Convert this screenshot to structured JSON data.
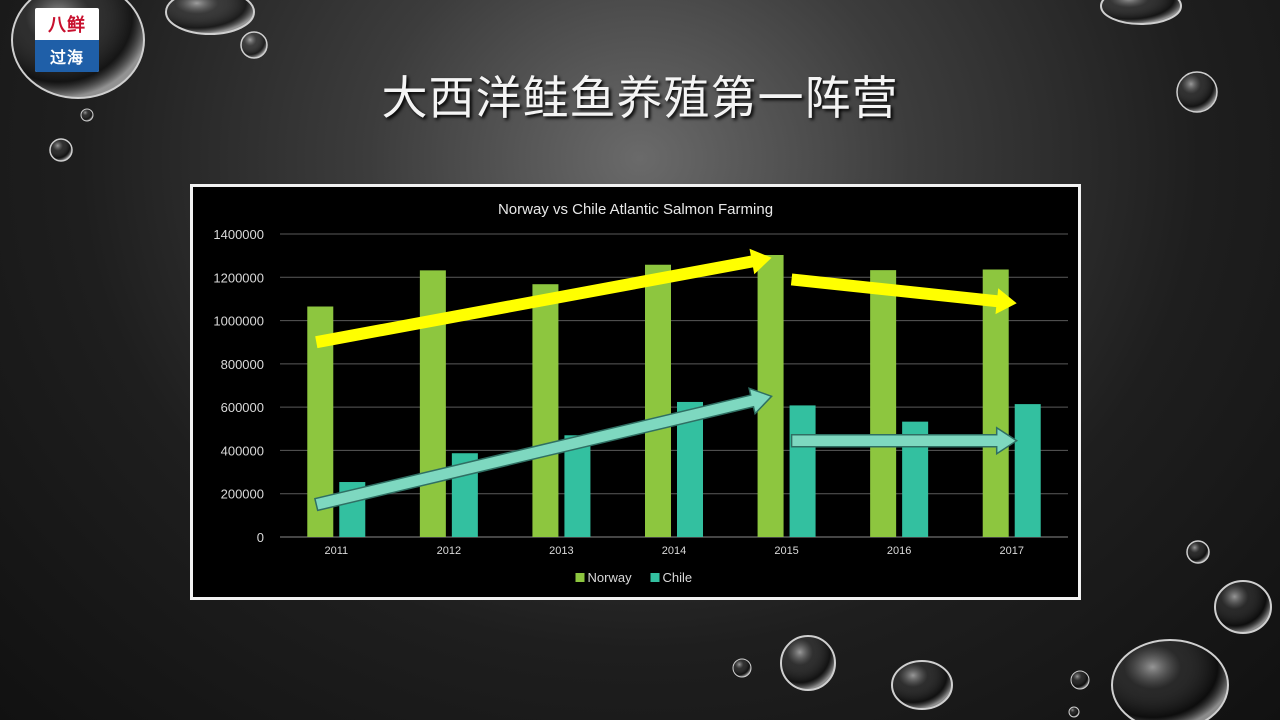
{
  "logo": {
    "top_text": "八鲜",
    "bottom_text": "过海"
  },
  "slide": {
    "title": "大西洋鲑鱼养殖第一阵营"
  },
  "chart_data": {
    "type": "bar",
    "title": "Norway vs Chile Atlantic Salmon Farming",
    "categories": [
      "2011",
      "2012",
      "2013",
      "2014",
      "2015",
      "2016",
      "2017"
    ],
    "series": [
      {
        "name": "Norway",
        "color": "#8dc63f",
        "values": [
          1065000,
          1232000,
          1168000,
          1258000,
          1303000,
          1233000,
          1236000
        ]
      },
      {
        "name": "Chile",
        "color": "#33c0a0",
        "values": [
          254000,
          387000,
          470000,
          624000,
          608000,
          533000,
          614000
        ]
      }
    ],
    "ylim": [
      0,
      1400000
    ],
    "yticks": [
      "0",
      "200000",
      "400000",
      "600000",
      "800000",
      "1000000",
      "1200000",
      "1400000"
    ],
    "grid": true,
    "legend_position": "bottom",
    "trend_arrows": [
      {
        "color": "#ffff00",
        "from": [
          "2011",
          900000
        ],
        "to": [
          "2015",
          1290000
        ]
      },
      {
        "color": "#ffff00",
        "from": [
          "2015",
          1190000
        ],
        "to": [
          "2017",
          1080000
        ]
      },
      {
        "color": "#7ed8c0",
        "from": [
          "2011",
          150000
        ],
        "to": [
          "2015",
          650000
        ]
      },
      {
        "color": "#7ed8c0",
        "from": [
          "2015",
          445000
        ],
        "to": [
          "2017",
          445000
        ]
      }
    ]
  }
}
